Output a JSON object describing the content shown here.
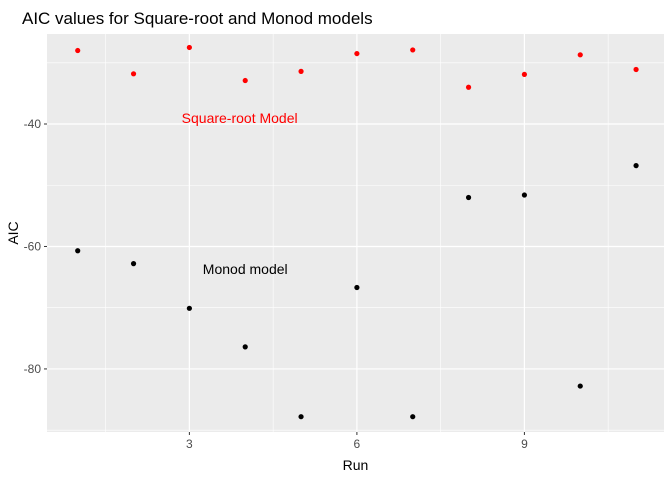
{
  "chart_data": {
    "type": "scatter",
    "title": "AIC values for Square-root and Monod models",
    "xlabel": "Run",
    "ylabel": "AIC",
    "xlim": [
      0.45,
      11.5
    ],
    "ylim": [
      -90.3,
      -25.3
    ],
    "x_ticks": [
      3,
      6,
      9
    ],
    "x_tick_labels": [
      "3",
      "6",
      "9"
    ],
    "y_ticks": [
      -80,
      -60,
      -40
    ],
    "y_tick_labels": [
      "-80",
      "-60",
      "-40"
    ],
    "grid": true,
    "background": "#ebebeb",
    "x": [
      1,
      2,
      3,
      4,
      5,
      6,
      7,
      8,
      9,
      10,
      11
    ],
    "series": [
      {
        "name": "Square-root Model",
        "color": "#ff0000",
        "values": [
          -28.0,
          -31.8,
          -27.5,
          -32.9,
          -31.4,
          -28.5,
          -27.9,
          -34.0,
          -31.9,
          -28.7,
          -31.1
        ]
      },
      {
        "name": "Monod model",
        "color": "#000000",
        "values": [
          -60.7,
          -62.8,
          -70.1,
          -76.4,
          -87.8,
          -66.7,
          -87.8,
          -52.0,
          -51.6,
          -82.8,
          -46.8
        ]
      }
    ],
    "annotations": [
      {
        "text": "Square-root Model",
        "x": 3.9,
        "y": -39.0,
        "color": "#ff0000"
      },
      {
        "text": "Monod model",
        "x": 4.0,
        "y": -63.7,
        "color": "#000000"
      }
    ]
  }
}
